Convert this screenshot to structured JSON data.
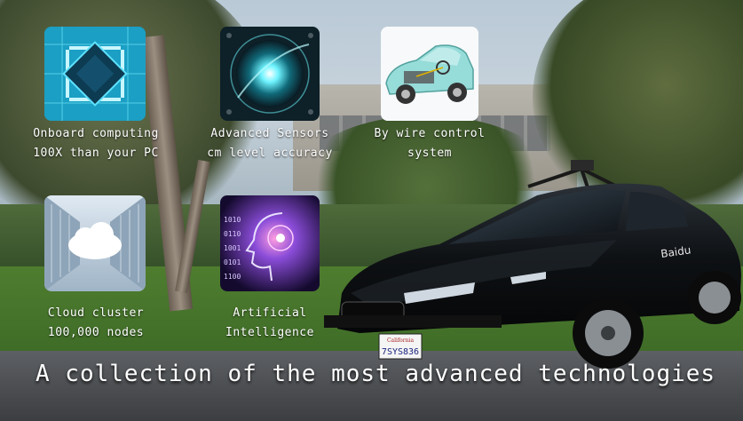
{
  "features": [
    {
      "line1": "Onboard computing",
      "line2": "100X than your PC",
      "icon": "processor-chip-icon"
    },
    {
      "line1": "Advanced Sensors",
      "line2": "cm level accuracy",
      "icon": "sensor-lens-icon"
    },
    {
      "line1": "By wire control",
      "line2": "system",
      "icon": "drive-by-wire-car-icon"
    },
    {
      "line1": "Cloud cluster",
      "line2": "100,000 nodes",
      "icon": "cloud-server-icon"
    },
    {
      "line1": "Artificial",
      "line2": "Intelligence",
      "icon": "ai-head-icon"
    }
  ],
  "headline": "A collection of the most advanced technologies",
  "car": {
    "plate": "7SYS836",
    "plate_state": "California",
    "brand": "Baidu"
  },
  "colors": {
    "text": "#ffffff",
    "chip_blue": "#28b8d8",
    "sensor_teal": "#3ee0e8",
    "ai_purple": "#8a4cd8"
  }
}
